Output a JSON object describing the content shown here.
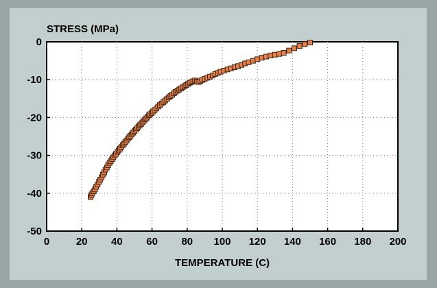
{
  "chart_data": {
    "type": "scatter",
    "title": "",
    "ylabel": "STRESS (MPa)",
    "xlabel": "TEMPERATURE (C)",
    "xlim": [
      0,
      200
    ],
    "ylim": [
      -50,
      0
    ],
    "xticks": [
      0,
      20,
      40,
      60,
      80,
      100,
      120,
      140,
      160,
      180,
      200
    ],
    "yticks": [
      0,
      -10,
      -20,
      -30,
      -40,
      -50
    ],
    "grid": true,
    "marker_color": "#e8804a",
    "marker_edge_color": "#3a2010",
    "background_color": "#c3cfcf",
    "plot_background_color": "#ffffff",
    "series": [
      {
        "x": [
          25.0,
          25.5,
          26.0,
          26.8,
          27.5,
          28.2,
          29.0,
          29.8,
          30.5,
          31.3,
          32.0,
          32.8,
          33.5,
          34.3,
          35.0,
          35.8,
          36.5,
          37.3,
          38.0,
          38.8,
          39.5,
          40.3,
          41.0,
          41.8,
          42.5,
          43.3,
          44.0,
          44.8,
          45.5,
          46.3,
          47.0,
          47.8,
          48.5,
          49.3,
          50.0,
          50.8,
          51.5,
          52.3,
          53.0,
          53.8,
          54.5,
          55.3,
          56.0,
          56.8,
          57.5,
          58.3,
          59.0,
          59.8,
          60.5,
          61.5,
          62.5,
          63.5,
          64.5,
          65.5,
          66.5,
          67.5,
          68.5,
          69.5,
          70.5,
          71.5,
          72.5,
          73.5,
          74.5,
          75.5,
          76.5,
          77.5,
          78.5,
          79.5,
          80.5,
          81.5,
          82.5,
          83.5,
          84.5,
          85.5,
          86.5,
          87.5,
          88.5,
          90.0,
          91.5,
          93.0,
          94.5,
          96.0,
          97.5,
          99.0,
          101.0,
          103.0,
          105.0,
          107.0,
          109.0,
          111.0,
          113.0,
          115.0,
          117.5,
          120.0,
          122.5,
          125.0,
          127.5,
          130.0,
          132.5,
          135.0,
          138.0,
          141.0,
          144.0,
          147.0,
          150.0
        ],
        "y": [
          -41.0,
          -40.5,
          -40.0,
          -39.5,
          -39.0,
          -38.3,
          -37.7,
          -37.0,
          -36.4,
          -35.8,
          -35.1,
          -34.5,
          -33.8,
          -33.2,
          -32.6,
          -32.0,
          -31.5,
          -31.0,
          -30.5,
          -30.0,
          -29.6,
          -29.1,
          -28.7,
          -28.2,
          -27.8,
          -27.3,
          -26.9,
          -26.5,
          -26.1,
          -25.6,
          -25.2,
          -24.8,
          -24.4,
          -24.0,
          -23.6,
          -23.2,
          -22.8,
          -22.4,
          -22.0,
          -21.7,
          -21.3,
          -20.9,
          -20.5,
          -20.2,
          -19.8,
          -19.4,
          -19.1,
          -18.8,
          -18.4,
          -18.0,
          -17.6,
          -17.1,
          -16.7,
          -16.3,
          -15.9,
          -15.5,
          -15.1,
          -14.7,
          -14.3,
          -14.0,
          -13.6,
          -13.2,
          -12.9,
          -12.6,
          -12.3,
          -12.0,
          -11.7,
          -11.4,
          -11.1,
          -10.8,
          -10.6,
          -10.4,
          -10.2,
          -10.5,
          -10.6,
          -10.4,
          -10.1,
          -9.8,
          -9.5,
          -9.2,
          -8.9,
          -8.5,
          -8.2,
          -7.9,
          -7.6,
          -7.3,
          -7.0,
          -6.7,
          -6.4,
          -6.1,
          -5.7,
          -5.4,
          -5.0,
          -4.6,
          -4.2,
          -3.9,
          -3.6,
          -3.4,
          -3.2,
          -2.9,
          -2.3,
          -1.7,
          -1.1,
          -0.6,
          -0.2
        ]
      }
    ]
  }
}
